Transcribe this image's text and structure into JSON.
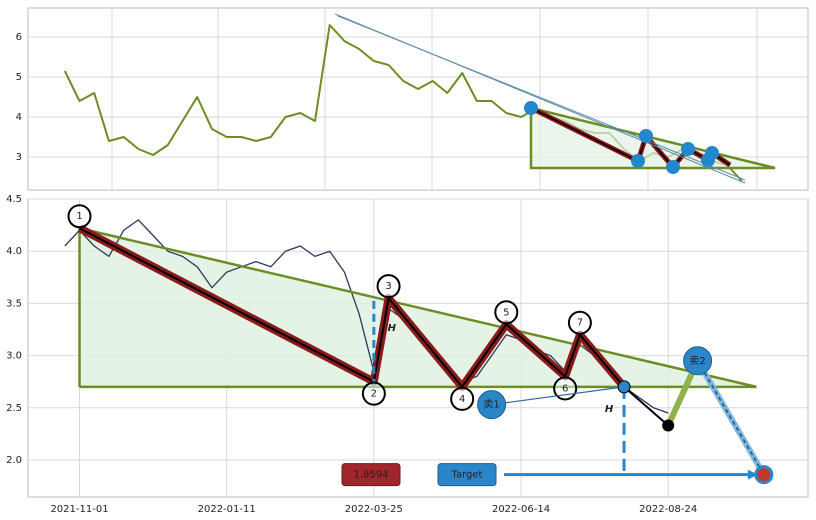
{
  "chart_data": [
    {
      "type": "line",
      "color": "#6b8e23",
      "values": [
        null,
        null,
        5.15,
        4.4,
        4.6,
        3.4,
        3.5,
        3.2,
        3.05,
        3.3,
        3.9,
        4.5,
        3.7,
        3.5,
        3.5,
        3.4,
        3.5,
        4.0,
        4.1,
        3.9,
        6.3,
        5.9,
        5.7,
        5.4,
        5.3,
        4.9,
        4.7,
        4.9,
        4.6,
        5.1,
        4.4,
        4.4,
        4.1,
        4.0,
        4.2,
        4.0,
        3.9,
        3.7,
        3.6,
        3.6,
        3.2,
        2.9,
        3.1,
        3.0,
        3.2,
        3.1,
        2.9,
        2.8,
        2.4,
        null,
        null,
        null,
        null
      ],
      "ylim": [
        2.175,
        6.725
      ],
      "yticks": [
        3,
        4,
        5,
        6
      ],
      "grid": true
    },
    {
      "type": "line",
      "color": "#2f3a5a",
      "categories": [
        null,
        null,
        null,
        "2021-11-01",
        null,
        null,
        null,
        null,
        null,
        null,
        null,
        null,
        null,
        "2022-01-11",
        null,
        null,
        null,
        null,
        null,
        null,
        null,
        null,
        null,
        "2022-03-25",
        null,
        null,
        null,
        null,
        null,
        null,
        null,
        null,
        null,
        "2022-06-14",
        null,
        null,
        null,
        null,
        null,
        null,
        null,
        null,
        null,
        "2022-08-24",
        null,
        null,
        null,
        null,
        null,
        null,
        null,
        null,
        null
      ],
      "values": [
        null,
        null,
        4.05,
        4.2,
        4.05,
        3.95,
        4.2,
        4.3,
        4.15,
        4.0,
        3.95,
        3.85,
        3.65,
        3.8,
        3.85,
        3.9,
        3.85,
        4.0,
        4.05,
        3.95,
        4.0,
        3.8,
        3.4,
        2.85,
        3.45,
        3.35,
        3.2,
        3.0,
        2.9,
        2.75,
        2.8,
        3.0,
        3.2,
        3.15,
        3.05,
        3.0,
        2.85,
        3.1,
        3.0,
        2.85,
        2.7,
        2.6,
        2.5,
        2.45,
        null,
        null,
        null,
        null,
        null,
        null,
        null,
        null,
        null
      ],
      "ylim": [
        1.645,
        4.5
      ],
      "yticks": [
        {
          "value": 2,
          "label": "2.0"
        },
        2.5,
        {
          "value": 3,
          "label": "3.0"
        },
        3.5,
        {
          "value": 4,
          "label": "4.0"
        },
        4.5
      ],
      "grid": true,
      "pattern_color": "#6b8e23",
      "resistance": {
        "x": [
          3,
          49
        ],
        "y": [
          4.22,
          2.7
        ]
      },
      "support": {
        "x": [
          3,
          49
        ],
        "y": [
          2.7,
          2.7
        ]
      },
      "points": [
        {
          "label": "1",
          "x": 3,
          "y": 4.22
        },
        {
          "label": "2",
          "x": 23,
          "y": 2.75
        },
        {
          "label": "3",
          "x": 24,
          "y": 3.55
        },
        {
          "label": "4",
          "x": 29,
          "y": 2.7
        },
        {
          "label": "5",
          "x": 32,
          "y": 3.3
        },
        {
          "label": "6",
          "x": 36,
          "y": 2.8
        },
        {
          "label": "7",
          "x": 37,
          "y": 3.2
        }
      ],
      "breakout": {
        "x": 40,
        "y": 2.7
      },
      "stop": {
        "x": 43,
        "y": 2.33
      },
      "height_label": "H",
      "sells": [
        {
          "label": "卖1",
          "x": 31,
          "y": 2.53
        },
        {
          "label": "卖2",
          "x": 45,
          "y": 2.95
        }
      ],
      "target": {
        "label": "Target",
        "x": 49.5,
        "y": 1.8594
      }
    }
  ]
}
